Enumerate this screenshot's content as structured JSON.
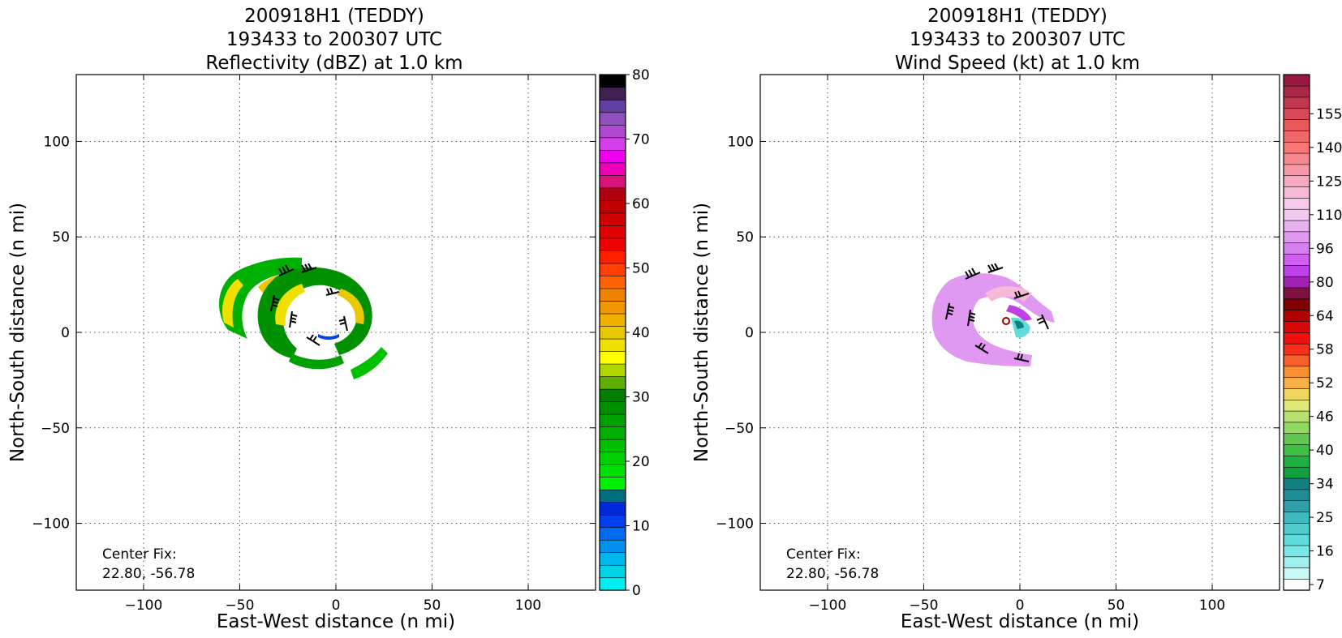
{
  "chart_data": [
    {
      "type": "heatmap",
      "title": [
        "200918H1 (TEDDY)",
        "193433 to 200307 UTC",
        "Reflectivity (dBZ) at 1.0 km"
      ],
      "xlabel": "East-West distance (n mi)",
      "ylabel": "North-South distance (n mi)",
      "xlim": [
        -135,
        135
      ],
      "ylim": [
        -135,
        135
      ],
      "x_ticks": [
        -100,
        -50,
        0,
        50,
        100
      ],
      "y_ticks": [
        -100,
        -50,
        0,
        50,
        100
      ],
      "x_tick_labels": [
        "−100",
        "−50",
        "0",
        "50",
        "100"
      ],
      "y_tick_labels": [
        "−100",
        "−50",
        "0",
        "50",
        "100"
      ],
      "grid": true,
      "annotation": [
        "Center Fix:",
        "22.80, -56.78"
      ],
      "colorbar": {
        "range": [
          0,
          80
        ],
        "tick_values": [
          0,
          10,
          20,
          30,
          40,
          50,
          60,
          70,
          80
        ],
        "tick_labels": [
          "0",
          "10",
          "20",
          "30",
          "40",
          "50",
          "60",
          "70",
          "80"
        ],
        "colors": [
          "#00f0f0",
          "#00d2e8",
          "#00b8ee",
          "#0090f0",
          "#006cf4",
          "#0040f0",
          "#0028d8",
          "#006e80",
          "#00f000",
          "#00e000",
          "#00d000",
          "#00c000",
          "#00b000",
          "#00a000",
          "#009000",
          "#008000",
          "#60b000",
          "#b0d800",
          "#ffff00",
          "#f0e000",
          "#e8c800",
          "#f0b000",
          "#f09600",
          "#f08200",
          "#ff6400",
          "#ff4000",
          "#ff2000",
          "#f00000",
          "#e00000",
          "#d00000",
          "#c00000",
          "#b00010",
          "#d81478",
          "#f000b8",
          "#f000f0",
          "#d440e8",
          "#b048d0",
          "#9050c0",
          "#6040a0",
          "#402050",
          "#000000"
        ]
      }
    },
    {
      "type": "heatmap",
      "title": [
        "200918H1 (TEDDY)",
        "193433 to 200307 UTC",
        "Wind Speed (kt) at 1.0 km"
      ],
      "xlabel": "East-West distance (n mi)",
      "ylabel": "North-South distance (n mi)",
      "xlim": [
        -135,
        135
      ],
      "ylim": [
        -135,
        135
      ],
      "x_ticks": [
        -100,
        -50,
        0,
        50,
        100
      ],
      "y_ticks": [
        -100,
        -50,
        0,
        50,
        100
      ],
      "x_tick_labels": [
        "−100",
        "−50",
        "0",
        "50",
        "100"
      ],
      "y_tick_labels": [
        "−100",
        "−50",
        "0",
        "50",
        "100"
      ],
      "grid": true,
      "annotation": [
        "Center Fix:",
        "22.80, -56.78"
      ],
      "colorbar": {
        "tick_labels": [
          "7",
          "16",
          "25",
          "34",
          "40",
          "46",
          "52",
          "58",
          "64",
          "80",
          "96",
          "110",
          "125",
          "140",
          "155"
        ],
        "tick_slot_index": [
          0,
          3,
          6,
          9,
          12,
          15,
          18,
          21,
          24,
          27,
          30,
          33,
          36,
          39,
          42
        ],
        "colors": [
          "#ffffff",
          "#c8fafa",
          "#a0f0f0",
          "#78e8e8",
          "#60dcdc",
          "#50cccc",
          "#40b8c0",
          "#30a0a8",
          "#208c98",
          "#108080",
          "#10a040",
          "#20b040",
          "#40c040",
          "#60c850",
          "#90d860",
          "#b8e070",
          "#e0e878",
          "#f0d860",
          "#f8b048",
          "#f89030",
          "#f86028",
          "#f83018",
          "#f01010",
          "#d80808",
          "#b00000",
          "#800000",
          "#801040",
          "#a020b0",
          "#c040e8",
          "#d060f0",
          "#d880f0",
          "#e098f0",
          "#e8b0f0",
          "#f0c8f0",
          "#f8c8e8",
          "#f8b8d8",
          "#f8a8c0",
          "#f898a8",
          "#f88890",
          "#f87878",
          "#f06868",
          "#e85858",
          "#d84858",
          "#c03850",
          "#a82848",
          "#981840"
        ]
      }
    }
  ]
}
